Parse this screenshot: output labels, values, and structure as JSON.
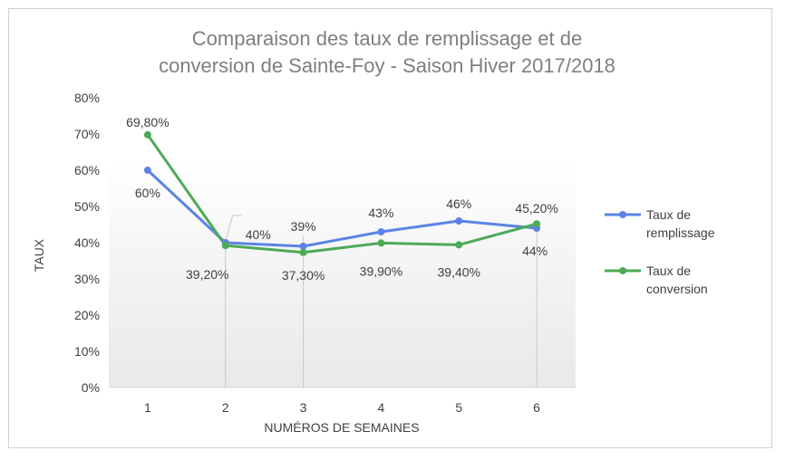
{
  "chart_data": {
    "type": "line",
    "title_lines": [
      "Comparaison des taux de remplissage et de",
      "conversion de Sainte-Foy - Saison Hiver 2017/2018"
    ],
    "xlabel": "NUMÉROS DE SEMAINES",
    "ylabel": "TAUX",
    "categories": [
      "1",
      "2",
      "3",
      "4",
      "5",
      "6"
    ],
    "y_ticks": [
      "0%",
      "10%",
      "20%",
      "30%",
      "40%",
      "50%",
      "60%",
      "70%",
      "80%"
    ],
    "ylim": [
      0,
      80
    ],
    "grid": false,
    "legend_position": "right",
    "series": [
      {
        "name": "Taux de remplissage",
        "legend_lines": [
          "Taux de",
          "remplissage"
        ],
        "color": "#5b84e5",
        "values": [
          60,
          40,
          39,
          43,
          46,
          44
        ],
        "labels": [
          "60%",
          "40%",
          "39%",
          "43%",
          "46%",
          "44%"
        ]
      },
      {
        "name": "Taux de conversion",
        "legend_lines": [
          "Taux de",
          "conversion"
        ],
        "color": "#4daa57",
        "values": [
          69.8,
          39.2,
          37.3,
          39.9,
          39.4,
          45.2
        ],
        "labels": [
          "69,80%",
          "39,20%",
          "37,30%",
          "39,90%",
          "39,40%",
          "45,20%"
        ]
      }
    ]
  }
}
